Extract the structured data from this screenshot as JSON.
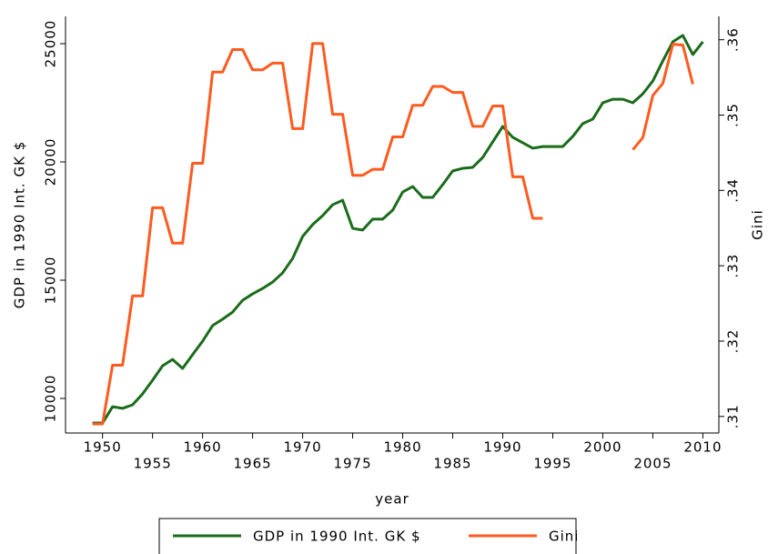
{
  "chart_data": {
    "type": "line",
    "x": [
      1949,
      1950,
      1951,
      1952,
      1953,
      1954,
      1955,
      1956,
      1957,
      1958,
      1959,
      1960,
      1961,
      1962,
      1963,
      1964,
      1965,
      1966,
      1967,
      1968,
      1969,
      1970,
      1971,
      1972,
      1973,
      1974,
      1975,
      1976,
      1977,
      1978,
      1979,
      1980,
      1981,
      1982,
      1983,
      1984,
      1985,
      1986,
      1987,
      1988,
      1989,
      1990,
      1991,
      1992,
      1993,
      1994,
      1995,
      1996,
      1997,
      1998,
      1999,
      2000,
      2001,
      2002,
      2003,
      2004,
      2005,
      2006,
      2007,
      2008,
      2009,
      2010
    ],
    "series": [
      {
        "name": "GDP in 1990 Int. GK $",
        "color": "#1a6b1a",
        "axis": "y",
        "values": [
          8960,
          8960,
          9650,
          9580,
          9730,
          10190,
          10770,
          11380,
          11650,
          11270,
          11850,
          12420,
          13080,
          13350,
          13650,
          14150,
          14420,
          14650,
          14920,
          15310,
          15920,
          16850,
          17350,
          17730,
          18190,
          18380,
          17190,
          17120,
          17580,
          17580,
          17960,
          18730,
          18960,
          18500,
          18500,
          19040,
          19620,
          19730,
          19770,
          20190,
          20850,
          21500,
          21040,
          20810,
          20580,
          20650,
          20650,
          20650,
          21080,
          21620,
          21810,
          22500,
          22650,
          22650,
          22500,
          22880,
          23420,
          24270,
          25080,
          25350,
          24540,
          25080
        ]
      },
      {
        "name": "Gini",
        "color": "#ff5a1f",
        "axis": "y2",
        "values": [
          0.309,
          0.309,
          0.3168,
          0.3168,
          0.326,
          0.326,
          0.3377,
          0.3377,
          0.333,
          0.333,
          0.3436,
          0.3436,
          0.3557,
          0.3557,
          0.3587,
          0.3587,
          0.356,
          0.356,
          0.3569,
          0.3569,
          0.3482,
          0.3482,
          0.3595,
          0.3595,
          0.3501,
          0.3501,
          0.342,
          0.342,
          0.3428,
          0.3428,
          0.3471,
          0.3471,
          0.3513,
          0.3513,
          0.3538,
          0.3538,
          0.353,
          0.353,
          0.3485,
          0.3485,
          0.3512,
          0.3512,
          0.3418,
          0.3418,
          0.3363,
          0.3363,
          null,
          null,
          null,
          null,
          null,
          null,
          null,
          null,
          0.3454,
          0.347,
          0.3526,
          0.3542,
          0.3594,
          0.3593,
          0.3541,
          null
        ]
      }
    ],
    "xlabel": "year",
    "ylabel": "GDP in 1990 Int. GK $",
    "y2label": "Gini",
    "xlim": [
      1946.3,
      2011.6
    ],
    "xticks": [
      1950,
      1955,
      1960,
      1965,
      1970,
      1975,
      1980,
      1985,
      1990,
      1995,
      2000,
      2005,
      2010
    ],
    "ylim": [
      8538,
      26154
    ],
    "yticks": [
      10000,
      15000,
      20000,
      25000
    ],
    "y2lim": [
      0.3078,
      0.3631
    ],
    "y2ticks": [
      {
        "value": 0.31,
        "label": ".31"
      },
      {
        "value": 0.32,
        "label": ".32"
      },
      {
        "value": 0.33,
        "label": ".33"
      },
      {
        "value": 0.34,
        "label": ".34"
      },
      {
        "value": 0.35,
        "label": ".35"
      },
      {
        "value": 0.36,
        "label": ".36"
      }
    ],
    "legend": "bottom"
  }
}
